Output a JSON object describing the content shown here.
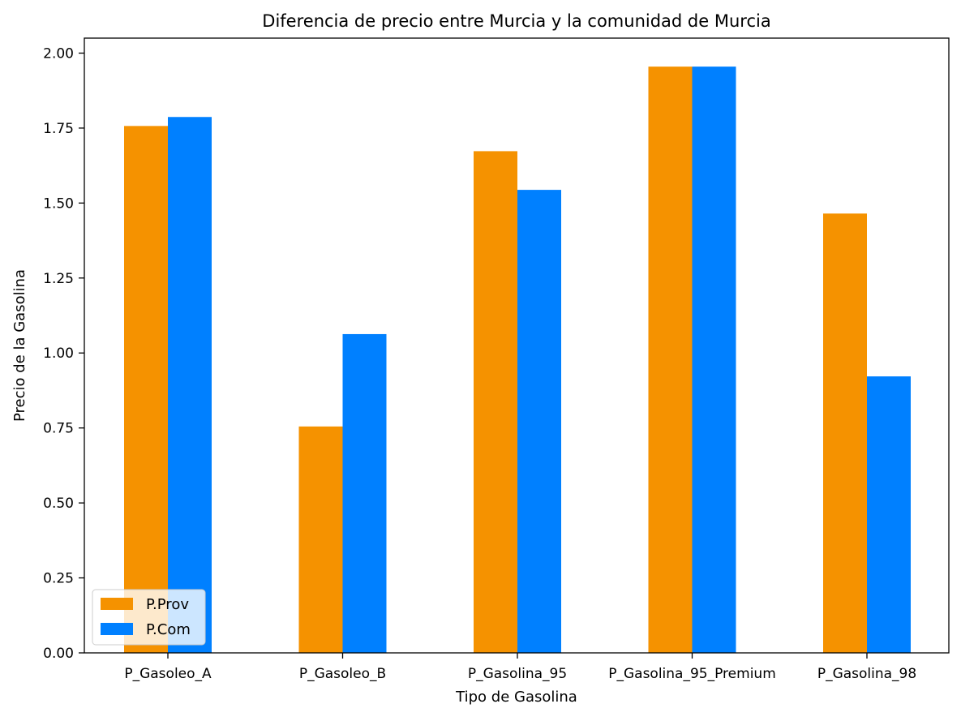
{
  "chart_data": {
    "type": "bar",
    "title": "Diferencia de precio entre Murcia y la comunidad de Murcia",
    "xlabel": "Tipo de Gasolina",
    "ylabel": "Precio de la Gasolina",
    "categories": [
      "P_Gasoleo_A",
      "P_Gasoleo_B",
      "P_Gasolina_95",
      "P_Gasolina_95_Premium",
      "P_Gasolina_98"
    ],
    "series": [
      {
        "name": "P.Prov",
        "color": "#f59200",
        "values": [
          1.757,
          0.755,
          1.673,
          1.955,
          1.465
        ]
      },
      {
        "name": "P.Com",
        "color": "#0080ff",
        "values": [
          1.787,
          1.063,
          1.544,
          1.955,
          0.922
        ]
      }
    ],
    "ylim": [
      0,
      2.05
    ],
    "yticks": [
      "0.00",
      "0.25",
      "0.50",
      "0.75",
      "1.00",
      "1.25",
      "1.50",
      "1.75",
      "2.00"
    ],
    "grid": false,
    "legend_position": "lower-left"
  }
}
